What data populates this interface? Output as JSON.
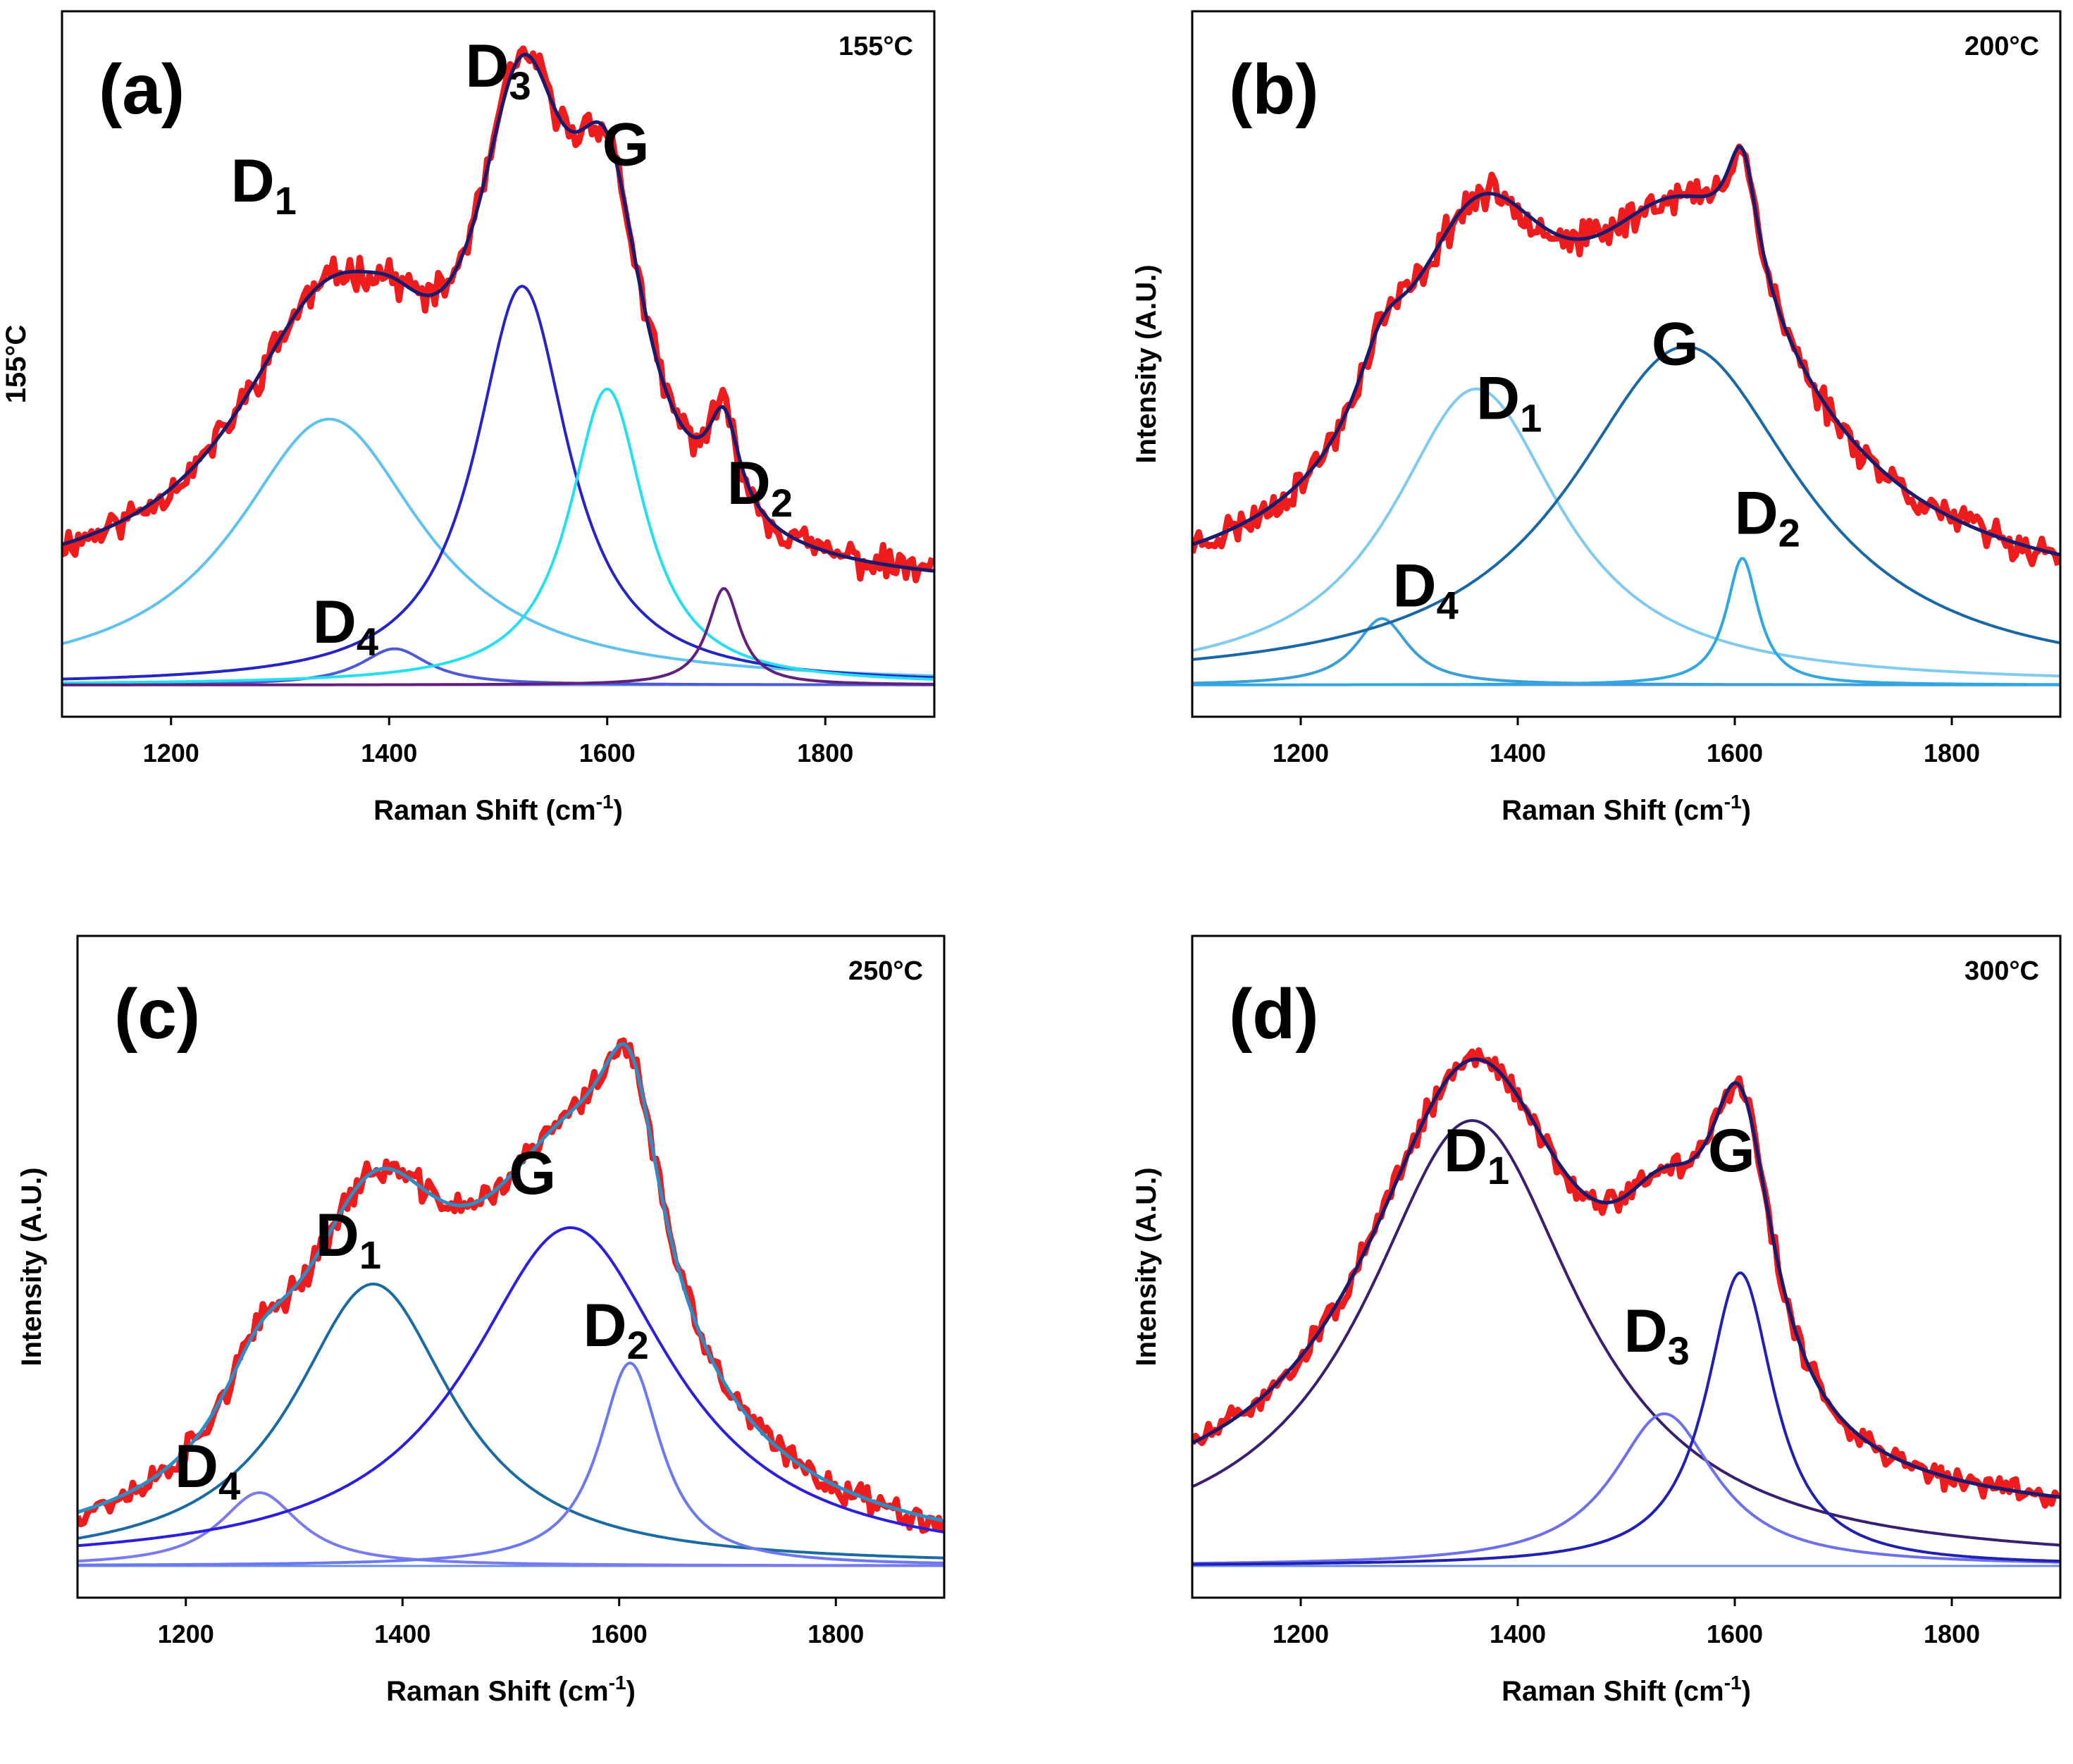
{
  "figure": "Raman spectra peak deconvolution at four temperatures",
  "chart_data": [
    {
      "type": "line",
      "panel_label": "(a)",
      "temperature": "155°C",
      "ylabel": "155°C",
      "xlabel": "Raman Shift (cm",
      "xlabel_sup": "-1",
      "xlabel_end": ")",
      "xlim": [
        1100,
        1900
      ],
      "ylim": [
        0,
        1.08
      ],
      "xticks": [
        1200,
        1400,
        1600,
        1800
      ],
      "baseline": 0.15,
      "noise": 0.022,
      "seed": 11,
      "series": [
        {
          "name": "D1",
          "sub": "1",
          "label": "D",
          "center": 1345,
          "hwhm": 105,
          "amp": 0.44,
          "color": "#5ec2ef",
          "text_x": 1285,
          "text_y": 0.8
        },
        {
          "name": "D4",
          "sub": "4",
          "label": "D",
          "center": 1405,
          "hwhm": 38,
          "amp": 0.06,
          "color": "#4d5ad6",
          "text_x": 1360,
          "text_y": 0.07
        },
        {
          "name": "D3",
          "sub": "3",
          "label": "D",
          "center": 1522,
          "hwhm": 52,
          "amp": 0.66,
          "color": "#2424c8",
          "text_x": 1500,
          "text_y": 0.99
        },
        {
          "name": "G",
          "sub": "",
          "label": "G",
          "center": 1600,
          "hwhm": 42,
          "amp": 0.49,
          "color": "#22e0f0",
          "text_x": 1617,
          "text_y": 0.86
        },
        {
          "name": "D2",
          "sub": "2",
          "label": "D",
          "center": 1707,
          "hwhm": 18,
          "amp": 0.16,
          "color": "#62207e",
          "text_x": 1740,
          "text_y": 0.3
        }
      ]
    },
    {
      "type": "line",
      "panel_label": "(b)",
      "temperature": "200°C",
      "ylabel": "Intensity (A.U.)",
      "xlabel": "Raman Shift (cm",
      "xlabel_sup": "-1",
      "xlabel_end": ")",
      "xlim": [
        1100,
        1900
      ],
      "ylim": [
        0,
        1.08
      ],
      "xticks": [
        1200,
        1400,
        1600,
        1800
      ],
      "baseline": 0.13,
      "noise": 0.022,
      "seed": 23,
      "series": [
        {
          "name": "D4",
          "sub": "4",
          "label": "D",
          "center": 1275,
          "hwhm": 30,
          "amp": 0.11,
          "color": "#3a9fd8",
          "text_x": 1315,
          "text_y": 0.13
        },
        {
          "name": "D1",
          "sub": "1",
          "label": "D",
          "center": 1362,
          "hwhm": 95,
          "amp": 0.49,
          "color": "#7fcbf0",
          "text_x": 1392,
          "text_y": 0.44
        },
        {
          "name": "G",
          "sub": "",
          "label": "G",
          "center": 1555,
          "hwhm": 130,
          "amp": 0.56,
          "color": "#1867a6",
          "text_x": 1545,
          "text_y": 0.53
        },
        {
          "name": "D2",
          "sub": "2",
          "label": "D",
          "center": 1607,
          "hwhm": 18,
          "amp": 0.21,
          "color": "#2fa7e2",
          "text_x": 1630,
          "text_y": 0.25
        }
      ]
    },
    {
      "type": "line",
      "panel_label": "(c)",
      "temperature": "250°C",
      "ylabel": "Intensity (A.U.)",
      "xlabel": "Raman Shift (cm",
      "xlabel_sup": "-1",
      "xlabel_end": ")",
      "xlim": [
        1100,
        1900
      ],
      "ylim": [
        0,
        1.08
      ],
      "xticks": [
        1200,
        1400,
        1600,
        1800
      ],
      "baseline": 0.0,
      "noise": 0.02,
      "seed": 37,
      "series": [
        {
          "name": "D4",
          "sub": "4",
          "label": "D",
          "center": 1268,
          "hwhm": 45,
          "amp": 0.13,
          "color": "#7a7af0",
          "text_x": 1220,
          "text_y": 0.14
        },
        {
          "name": "D1",
          "sub": "1",
          "label": "D",
          "center": 1373,
          "hwhm": 90,
          "amp": 0.5,
          "color": "#1a6aa3",
          "text_x": 1350,
          "text_y": 0.55
        },
        {
          "name": "G",
          "sub": "",
          "label": "G",
          "center": 1555,
          "hwhm": 115,
          "amp": 0.6,
          "color": "#2a1ee0",
          "text_x": 1520,
          "text_y": 0.66
        },
        {
          "name": "D2",
          "sub": "2",
          "label": "D",
          "center": 1610,
          "hwhm": 35,
          "amp": 0.36,
          "color": "#6c78f2",
          "text_x": 1597,
          "text_y": 0.39
        }
      ]
    },
    {
      "type": "line",
      "panel_label": "(d)",
      "temperature": "300°C",
      "ylabel": "Intensity (A.U.)",
      "xlabel": "Raman Shift (cm",
      "xlabel_sup": "-1",
      "xlabel_end": ")",
      "xlim": [
        1100,
        1900
      ],
      "ylim": [
        0,
        1.08
      ],
      "xticks": [
        1200,
        1400,
        1600,
        1800
      ],
      "baseline": 0.07,
      "noise": 0.018,
      "seed": 51,
      "series": [
        {
          "name": "D1",
          "sub": "1",
          "label": "D",
          "center": 1358,
          "hwhm": 120,
          "amp": 0.79,
          "color": "#3a1e70",
          "text_x": 1362,
          "text_y": 0.7
        },
        {
          "name": "D3",
          "sub": "3",
          "label": "D",
          "center": 1535,
          "hwhm": 58,
          "amp": 0.27,
          "color": "#6b6ff0",
          "text_x": 1528,
          "text_y": 0.38
        },
        {
          "name": "G",
          "sub": "",
          "label": "G",
          "center": 1605,
          "hwhm": 38,
          "amp": 0.52,
          "color": "#2020b4",
          "text_x": 1597,
          "text_y": 0.7
        }
      ]
    }
  ],
  "colors": {
    "data": "#ee1c1c",
    "envelope_ac": "#1a1a6e",
    "envelope_b": "#1a1a6e",
    "envelope_c": "#2e8cc4",
    "envelope_d": "#1a1a6e",
    "zero_line": "#6a8cf0"
  }
}
